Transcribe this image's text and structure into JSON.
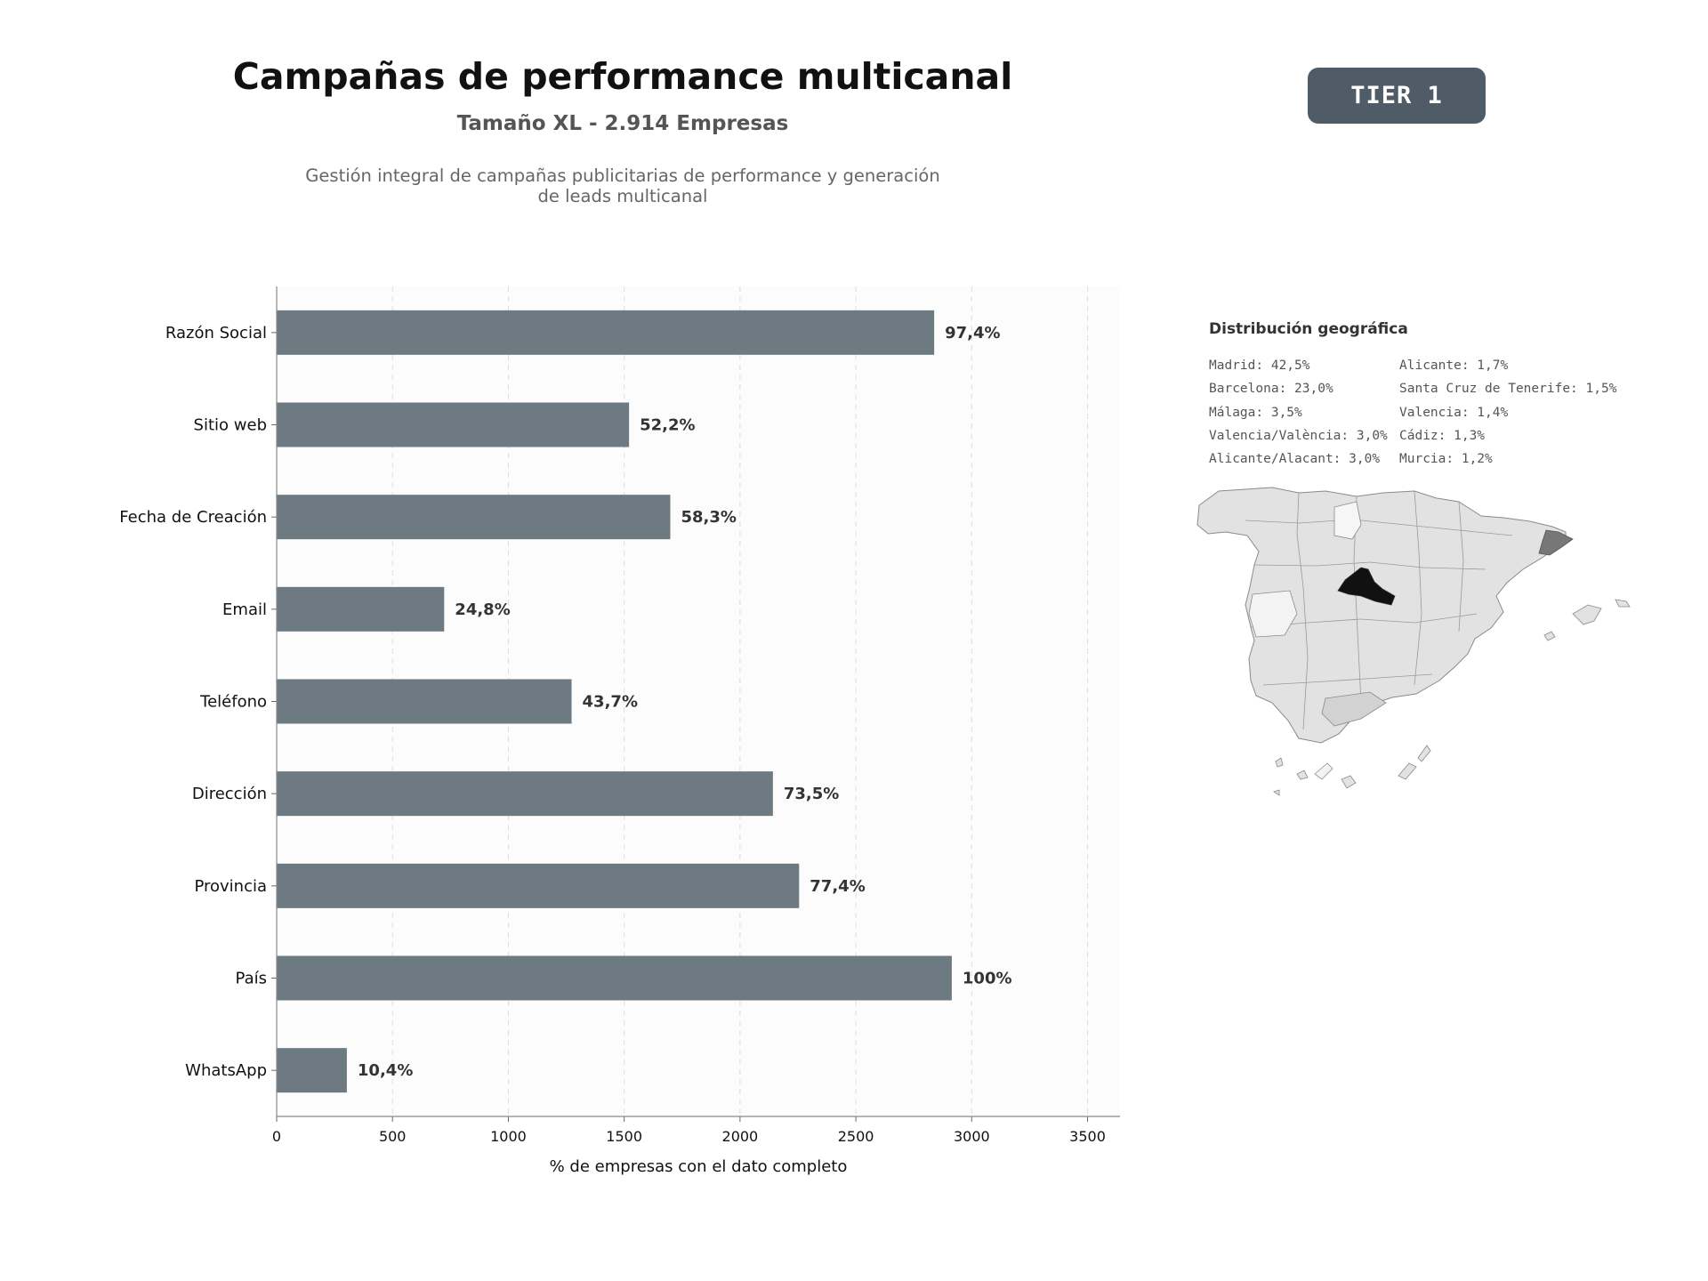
{
  "header": {
    "title": "Campañas de performance multicanal",
    "subtitle": "Tamaño XL - 2.914 Empresas",
    "description_line1": "Gestión integral de campañas publicitarias de performance y generación",
    "description_line2": "de leads multicanal",
    "tier": "TIER 1"
  },
  "colors": {
    "bar": "#6e7a82",
    "badge": "#4f5b67",
    "map_highlight": "#111111",
    "map_second": "#777777",
    "map_base": "#e2e2e2"
  },
  "chart_data": {
    "type": "bar",
    "orientation": "horizontal",
    "categories": [
      "Razón Social",
      "Sitio web",
      "Fecha de Creación",
      "Email",
      "Teléfono",
      "Dirección",
      "Provincia",
      "País",
      "WhatsApp"
    ],
    "values": [
      2838,
      1521,
      1699,
      723,
      1273,
      2142,
      2255,
      2914,
      303
    ],
    "labels": [
      "97,4%",
      "52,2%",
      "58,3%",
      "24,8%",
      "43,7%",
      "73,5%",
      "77,4%",
      "100%",
      "10,4%"
    ],
    "xticks": [
      "0",
      "500",
      "1000",
      "1500",
      "2000",
      "2500",
      "3000",
      "3500"
    ],
    "xlim": [
      0,
      3640
    ],
    "xlabel": "% de empresas con el dato completo",
    "grid": "vertical dashed",
    "legend": "none"
  },
  "geo": {
    "title": "Distribución geográfica",
    "col1": [
      "Madrid: 42,5%",
      "Barcelona: 23,0%",
      "Málaga: 3,5%",
      "Valencia/València: 3,0%",
      "Alicante/Alacant: 3,0%"
    ],
    "col2": [
      "Alicante: 1,7%",
      "Santa Cruz de Tenerife: 1,5%",
      "Valencia: 1,4%",
      "Cádiz: 1,3%",
      "Murcia: 1,2%"
    ]
  }
}
